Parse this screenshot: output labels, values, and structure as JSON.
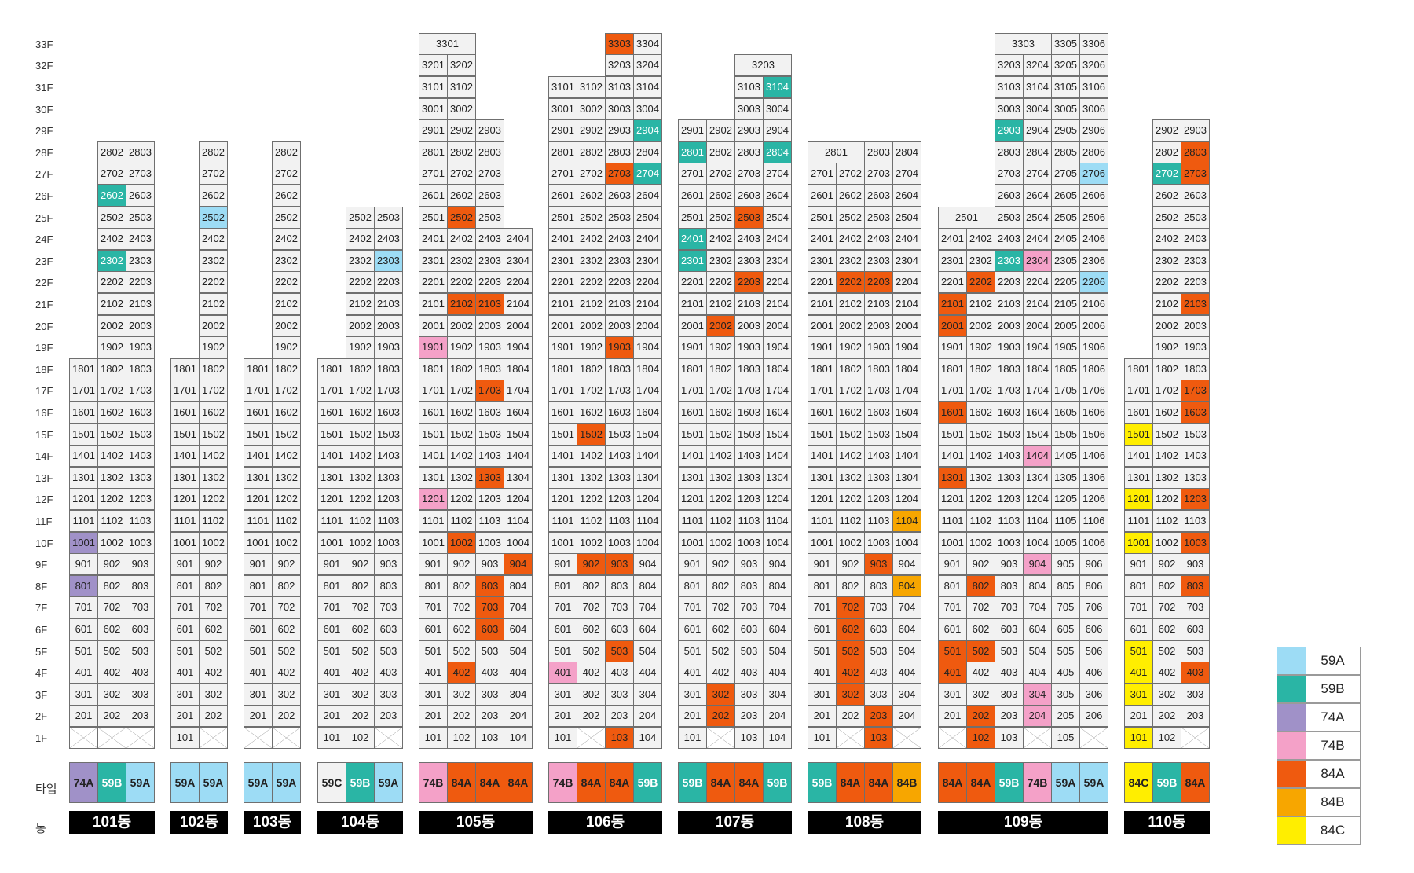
{
  "labels": {
    "type_row": "타입",
    "dong_row": "동"
  },
  "legend": [
    {
      "label": "59A",
      "color": "#9ddcf5"
    },
    {
      "label": "59B",
      "color": "#2ab5a5"
    },
    {
      "label": "74A",
      "color": "#a091c8"
    },
    {
      "label": "74B",
      "color": "#f4a1c8"
    },
    {
      "label": "84A",
      "color": "#ef5a0f"
    },
    {
      "label": "84B",
      "color": "#f7a600"
    },
    {
      "label": "84C",
      "color": "#ffee00"
    }
  ],
  "buildings": [
    {
      "name": "101동",
      "lines": 3,
      "cols": [
        {
          "maxF": 18,
          "type": "74A"
        },
        {
          "maxF": 28,
          "type": "59B"
        },
        {
          "maxF": 28,
          "type": "59A"
        }
      ],
      "ground": [
        null,
        null,
        null
      ],
      "colored": {
        "801": "74A",
        "1001": "74A",
        "2302": "59B",
        "2602": "59B"
      }
    },
    {
      "name": "102동",
      "lines": 2,
      "cols": [
        {
          "maxF": 18,
          "type": "59A"
        },
        {
          "maxF": 28,
          "type": "59A"
        }
      ],
      "ground": [
        101,
        null
      ],
      "colored": {
        "2502": "59A"
      }
    },
    {
      "name": "103동",
      "lines": 2,
      "cols": [
        {
          "maxF": 18,
          "type": "59A"
        },
        {
          "maxF": 28,
          "type": "59A"
        }
      ],
      "ground": [
        null,
        null
      ],
      "colored": {}
    },
    {
      "name": "104동",
      "lines": 3,
      "cols": [
        {
          "maxF": 18,
          "type": "59C"
        },
        {
          "maxF": 25,
          "type": "59B"
        },
        {
          "maxF": 25,
          "type": "59A"
        }
      ],
      "ground": [
        101,
        102,
        null
      ],
      "colored": {
        "2303": "59A"
      }
    },
    {
      "name": "105동",
      "lines": 4,
      "cols": [
        {
          "maxF": 33,
          "type": "74B"
        },
        {
          "maxF": 32,
          "type": "84A"
        },
        {
          "maxF": 29,
          "type": "84A"
        },
        {
          "maxF": 24,
          "type": "84A"
        }
      ],
      "ground": [
        101,
        102,
        103,
        104
      ],
      "combined": {
        "33": {
          "start": 0,
          "span": 2,
          "text": "3301"
        }
      },
      "colored": {
        "1201": "74B",
        "1901": "74B",
        "402": "84A",
        "1002": "84A",
        "2102": "84A",
        "2502": "84A",
        "603": "84A",
        "703": "84A",
        "803": "84A",
        "1303": "84A",
        "1703": "84A",
        "2103": "84A",
        "904": "84A"
      }
    },
    {
      "name": "106동",
      "lines": 4,
      "cols": [
        {
          "maxF": 31,
          "type": "74B"
        },
        {
          "maxF": 31,
          "type": "84A"
        },
        {
          "maxF": 33,
          "type": "84A"
        },
        {
          "maxF": 33,
          "type": "59B"
        }
      ],
      "ground": [
        101,
        null,
        103,
        104
      ],
      "colored": {
        "401": "74B",
        "902": "84A",
        "1502": "84A",
        "103": "84A",
        "503": "84A",
        "903": "84A",
        "1903": "84A",
        "2703": "84A",
        "3303": "84A",
        "2704": "59B",
        "2904": "59B"
      }
    },
    {
      "name": "107동",
      "lines": 4,
      "cols": [
        {
          "maxF": 29,
          "type": "59B"
        },
        {
          "maxF": 29,
          "type": "84A"
        },
        {
          "maxF": 32,
          "type": "84A"
        },
        {
          "maxF": 32,
          "type": "59B"
        }
      ],
      "ground": [
        101,
        null,
        103,
        104
      ],
      "combined": {
        "32": {
          "start": 2,
          "span": 2,
          "text": "3203"
        }
      },
      "colored": {
        "2301": "59B",
        "2401": "59B",
        "2801": "59B",
        "202": "84A",
        "302": "84A",
        "2002": "84A",
        "2203": "84A",
        "2503": "84A",
        "2804": "59B",
        "3104": "59B"
      }
    },
    {
      "name": "108동",
      "lines": 4,
      "cols": [
        {
          "maxF": 28,
          "type": "59B"
        },
        {
          "maxF": 28,
          "type": "84A"
        },
        {
          "maxF": 28,
          "type": "84A"
        },
        {
          "maxF": 28,
          "type": "84B"
        }
      ],
      "ground": [
        101,
        null,
        103,
        null
      ],
      "combined": {
        "28": {
          "start": 0,
          "span": 2,
          "text": "2801"
        }
      },
      "colored": {
        "302": "84A",
        "402": "84A",
        "502": "84A",
        "602": "84A",
        "702": "84A",
        "2202": "84A",
        "103": "84A",
        "203": "84A",
        "903": "84A",
        "2203": "84A",
        "804": "84B",
        "1104": "84B"
      }
    },
    {
      "name": "109동",
      "lines": 6,
      "cols": [
        {
          "maxF": 25,
          "type": "84A"
        },
        {
          "maxF": 25,
          "type": "84A"
        },
        {
          "maxF": 33,
          "type": "59B"
        },
        {
          "maxF": 33,
          "type": "74B"
        },
        {
          "maxF": 33,
          "type": "59A"
        },
        {
          "maxF": 33,
          "type": "59A"
        }
      ],
      "ground": [
        null,
        102,
        103,
        null,
        105,
        null
      ],
      "combined": {
        "25": {
          "start": 0,
          "span": 2,
          "text": "2501"
        },
        "33": {
          "start": 2,
          "span": 2,
          "text": "3303"
        }
      },
      "colored": {
        "401": "84A",
        "501": "84A",
        "1301": "84A",
        "1601": "84A",
        "2001": "84A",
        "2101": "84A",
        "102": "84A",
        "202": "84A",
        "502": "84A",
        "802": "84A",
        "2202": "84A",
        "2303": "59B",
        "2903": "59B",
        "204": "74B",
        "304": "74B",
        "904": "74B",
        "1404": "74B",
        "2304": "74B",
        "2206": "59A",
        "2706": "59A"
      }
    },
    {
      "name": "110동",
      "lines": 3,
      "cols": [
        {
          "maxF": 18,
          "type": "84C"
        },
        {
          "maxF": 29,
          "type": "59B"
        },
        {
          "maxF": 29,
          "type": "84A"
        }
      ],
      "ground": [
        101,
        102,
        null
      ],
      "colored": {
        "101": "84C",
        "301": "84C",
        "401": "84C",
        "501": "84C",
        "1001": "84C",
        "1201": "84C",
        "1501": "84C",
        "2702": "59B",
        "403": "84A",
        "803": "84A",
        "1003": "84A",
        "1203": "84A",
        "1603": "84A",
        "1703": "84A",
        "2103": "84A",
        "2703": "84A",
        "2803": "84A"
      }
    }
  ]
}
